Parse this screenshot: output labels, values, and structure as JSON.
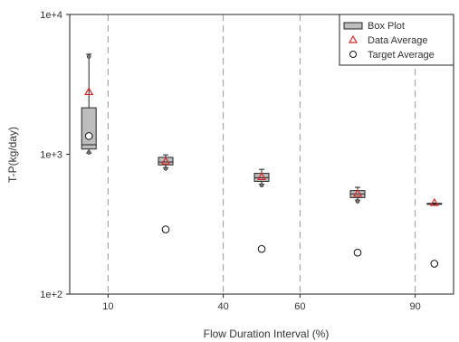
{
  "chart_data": {
    "type": "box",
    "xlabel": "Flow Duration Interval (%)",
    "ylabel": "T-P(kg/day)",
    "xlim": [
      0,
      100
    ],
    "ylim": [
      100,
      10000
    ],
    "yscale": "log",
    "x_ticks": [
      {
        "value": 10,
        "label": "10"
      },
      {
        "value": 40,
        "label": "40"
      },
      {
        "value": 60,
        "label": "60"
      },
      {
        "value": 90,
        "label": "90"
      }
    ],
    "y_ticks": [
      {
        "value": 100,
        "label": "1e+2"
      },
      {
        "value": 1000,
        "label": "1e+3"
      },
      {
        "value": 10000,
        "label": "1e+4"
      }
    ],
    "dividers": [
      10,
      40,
      60,
      90
    ],
    "legend": {
      "position": "top-right",
      "entries": [
        {
          "key": "box",
          "label": "Box Plot"
        },
        {
          "key": "data_avg",
          "label": "Data Average"
        },
        {
          "key": "target_avg",
          "label": "Target Average"
        }
      ]
    },
    "boxes": [
      {
        "x": 5,
        "whisker_low": 1020,
        "q1": 1090,
        "median": 1170,
        "q3": 2150,
        "whisker_high": 5200,
        "outliers": [
          1030,
          5000
        ]
      },
      {
        "x": 25,
        "whisker_low": 800,
        "q1": 840,
        "median": 880,
        "q3": 950,
        "whisker_high": 990,
        "outliers": [
          790
        ]
      },
      {
        "x": 50,
        "whisker_low": 610,
        "q1": 640,
        "median": 680,
        "q3": 730,
        "whisker_high": 780,
        "outliers": [
          600
        ]
      },
      {
        "x": 75,
        "whisker_low": 470,
        "q1": 490,
        "median": 520,
        "q3": 550,
        "whisker_high": 580,
        "outliers": [
          460
        ]
      },
      {
        "x": 95,
        "whisker_low": 440,
        "q1": 441,
        "median": 443,
        "q3": 445,
        "whisker_high": 447,
        "outliers": []
      }
    ],
    "data_average": [
      {
        "x": 5,
        "y": 2800
      },
      {
        "x": 25,
        "y": 890
      },
      {
        "x": 50,
        "y": 690
      },
      {
        "x": 75,
        "y": 525
      },
      {
        "x": 95,
        "y": 450
      }
    ],
    "target_average": [
      {
        "x": 5,
        "y": 1350
      },
      {
        "x": 25,
        "y": 290
      },
      {
        "x": 50,
        "y": 210
      },
      {
        "x": 75,
        "y": 198
      },
      {
        "x": 95,
        "y": 165
      }
    ],
    "colors": {
      "box_fill": "#bdbdbd",
      "box_stroke": "#222222",
      "data_average": "#d62728",
      "target_average": "#111111",
      "divider": "#999999",
      "axis": "#222222"
    }
  }
}
